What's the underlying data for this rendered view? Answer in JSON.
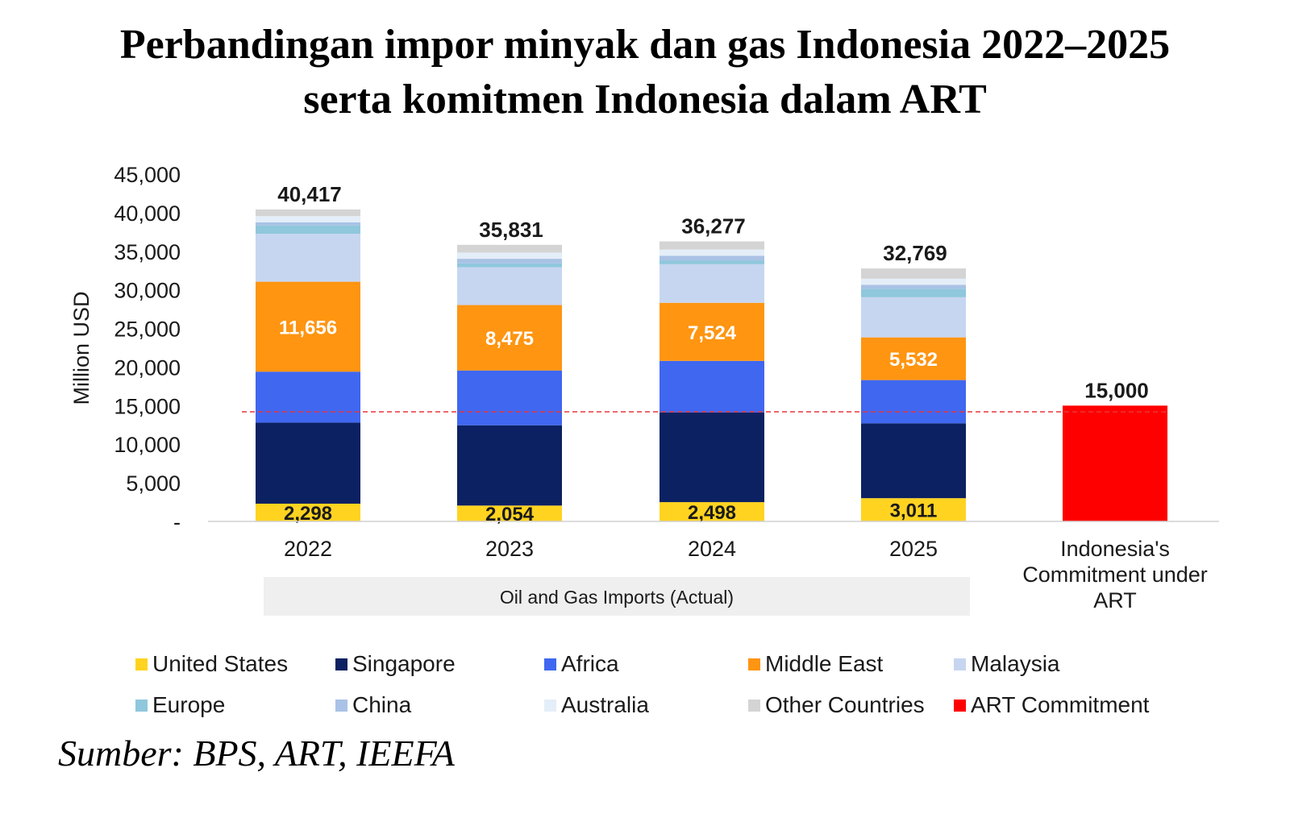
{
  "title": {
    "line1": "Perbandingan impor minyak dan gas Indonesia 2022–2025",
    "line2": "serta komitmen Indonesia dalam ART"
  },
  "source": "Sumber: BPS, ART, IEEFA",
  "chart_data": {
    "type": "bar",
    "stacked": true,
    "ylabel": "Million USD",
    "ylim": [
      0,
      45000
    ],
    "yticks": [
      0,
      5000,
      10000,
      15000,
      20000,
      25000,
      30000,
      35000,
      40000,
      45000
    ],
    "ytick_labels": [
      "-",
      "5,000",
      "10,000",
      "15,000",
      "20,000",
      "25,000",
      "30,000",
      "35,000",
      "40,000",
      "45,000"
    ],
    "categories": [
      "2022",
      "2023",
      "2024",
      "2025",
      "Indonesia's Commitment under ART"
    ],
    "group_label": "Oil and Gas Imports (Actual)",
    "series": [
      {
        "name": "United States",
        "color": "#FFD320",
        "values": [
          2298,
          2054,
          2498,
          3011,
          null
        ],
        "labels": [
          "2,298",
          "2,054",
          "2,498",
          "3,011",
          ""
        ]
      },
      {
        "name": "Singapore",
        "color": "#0C2161",
        "values": [
          10500,
          10400,
          11600,
          9700,
          null
        ],
        "labels": [
          "",
          "",
          "",
          "",
          ""
        ]
      },
      {
        "name": "Africa",
        "color": "#3F67F0",
        "values": [
          6600,
          7100,
          6700,
          5600,
          null
        ],
        "labels": [
          "",
          "",
          "",
          "",
          ""
        ]
      },
      {
        "name": "Middle East",
        "color": "#FF9511",
        "values": [
          11656,
          8475,
          7524,
          5532,
          null
        ],
        "labels": [
          "11,656",
          "8,475",
          "7,524",
          "5,532",
          ""
        ]
      },
      {
        "name": "Malaysia",
        "color": "#C7D6F0",
        "values": [
          6200,
          4900,
          5000,
          5200,
          null
        ],
        "labels": [
          "",
          "",
          "",
          "",
          ""
        ]
      },
      {
        "name": "Europe",
        "color": "#8FC7DC",
        "values": [
          1100,
          500,
          500,
          1100,
          null
        ],
        "labels": [
          "",
          "",
          "",
          "",
          ""
        ]
      },
      {
        "name": "China",
        "color": "#A9C2E5",
        "values": [
          400,
          600,
          600,
          500,
          null
        ],
        "labels": [
          "",
          "",
          "",
          "",
          ""
        ]
      },
      {
        "name": "Australia",
        "color": "#E4EEF8",
        "values": [
          800,
          800,
          800,
          800,
          null
        ],
        "labels": [
          "",
          "",
          "",
          "",
          ""
        ]
      },
      {
        "name": "Other Countries",
        "color": "#D4D4D4",
        "values": [
          863,
          1002,
          1055,
          1326,
          null
        ],
        "labels": [
          "",
          "",
          "",
          "",
          ""
        ]
      },
      {
        "name": "ART Commitment",
        "color": "#FF0000",
        "values": [
          null,
          null,
          null,
          null,
          15000
        ],
        "labels": [
          "",
          "",
          "",
          "",
          ""
        ]
      }
    ],
    "totals": [
      40417,
      35831,
      36277,
      32769,
      15000
    ],
    "total_labels": [
      "40,417",
      "35,831",
      "36,277",
      "32,769",
      "15,000"
    ],
    "reference_line": {
      "value": 14200,
      "color": "#E8353A",
      "style": "dashed"
    },
    "legend_position": "bottom",
    "grid": false
  }
}
